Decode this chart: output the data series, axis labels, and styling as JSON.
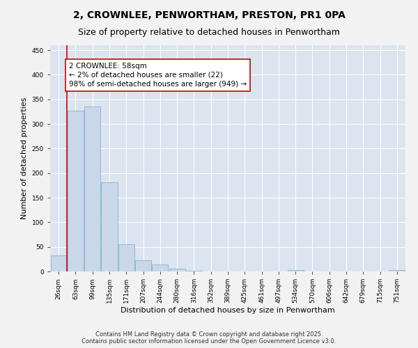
{
  "title_line1": "2, CROWNLEE, PENWORTHAM, PRESTON, PR1 0PA",
  "title_line2": "Size of property relative to detached houses in Penwortham",
  "xlabel": "Distribution of detached houses by size in Penwortham",
  "ylabel": "Number of detached properties",
  "categories": [
    "26sqm",
    "63sqm",
    "99sqm",
    "135sqm",
    "171sqm",
    "207sqm",
    "244sqm",
    "280sqm",
    "316sqm",
    "352sqm",
    "389sqm",
    "425sqm",
    "461sqm",
    "497sqm",
    "534sqm",
    "570sqm",
    "606sqm",
    "642sqm",
    "679sqm",
    "715sqm",
    "751sqm"
  ],
  "values": [
    32,
    327,
    335,
    181,
    55,
    22,
    14,
    6,
    1,
    0,
    0,
    0,
    0,
    0,
    3,
    0,
    0,
    0,
    0,
    0,
    3
  ],
  "bar_color": "#c8d8ea",
  "bar_edgecolor": "#7aaac8",
  "background_color": "#dce4ef",
  "grid_color": "#ffffff",
  "fig_background": "#f2f2f2",
  "annotation_box_color": "#ffffff",
  "annotation_box_edgecolor": "#cc0000",
  "annotation_text": "2 CROWNLEE: 58sqm\n← 2% of detached houses are smaller (22)\n98% of semi-detached houses are larger (949) →",
  "vline_color": "#cc0000",
  "ylim": [
    0,
    460
  ],
  "yticks": [
    0,
    50,
    100,
    150,
    200,
    250,
    300,
    350,
    400,
    450
  ],
  "footer_line1": "Contains HM Land Registry data © Crown copyright and database right 2025.",
  "footer_line2": "Contains public sector information licensed under the Open Government Licence v3.0.",
  "title_fontsize": 10,
  "subtitle_fontsize": 9,
  "axis_label_fontsize": 8,
  "tick_fontsize": 6.5,
  "annotation_fontsize": 7.5,
  "footer_fontsize": 6
}
